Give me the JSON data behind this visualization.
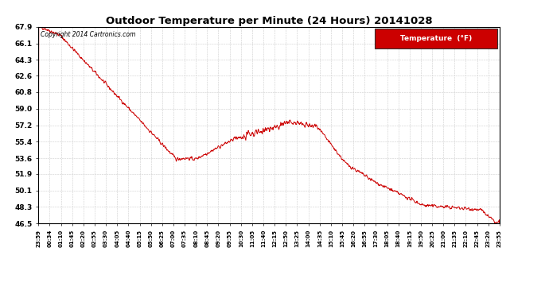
{
  "title": "Outdoor Temperature per Minute (24 Hours) 20141028",
  "copyright_text": "Copyright 2014 Cartronics.com",
  "legend_label": "Temperature  (°F)",
  "background_color": "#ffffff",
  "plot_bg_color": "#ffffff",
  "line_color": "#cc0000",
  "grid_color": "#cccccc",
  "yticks": [
    46.5,
    48.3,
    50.1,
    51.9,
    53.6,
    55.4,
    57.2,
    59.0,
    60.8,
    62.6,
    64.3,
    66.1,
    67.9
  ],
  "xtick_labels": [
    "23:59",
    "00:34",
    "01:10",
    "01:45",
    "02:20",
    "02:55",
    "03:30",
    "04:05",
    "04:40",
    "05:15",
    "05:50",
    "06:25",
    "07:00",
    "07:35",
    "08:10",
    "08:45",
    "09:20",
    "09:55",
    "10:30",
    "11:05",
    "11:40",
    "12:15",
    "12:50",
    "13:25",
    "14:00",
    "14:35",
    "15:10",
    "15:45",
    "16:20",
    "16:55",
    "17:30",
    "18:05",
    "18:40",
    "19:15",
    "19:50",
    "20:25",
    "21:00",
    "21:35",
    "22:10",
    "22:45",
    "23:20",
    "23:55"
  ],
  "ymin": 46.5,
  "ymax": 67.9,
  "legend_bg": "#cc0000",
  "legend_text_color": "#ffffff"
}
